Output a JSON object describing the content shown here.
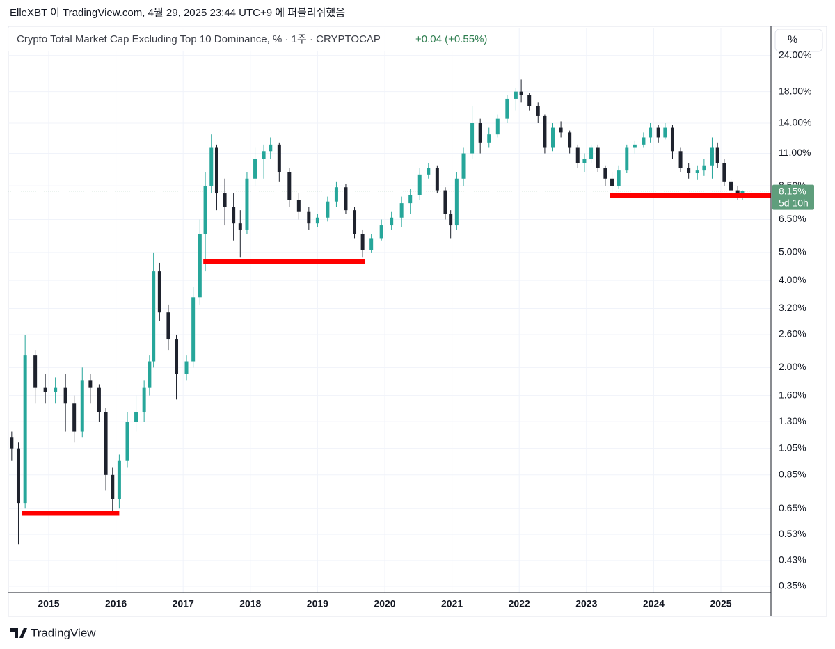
{
  "header": "ElleXBT 이 TradingView.com, 4월 29, 2025 23:44 UTC+9 에 퍼블리쉬했음",
  "footer": "TradingView",
  "chart_data": {
    "type": "candlestick",
    "title": "Crypto Total Market Cap Excluding Top 10 Dominance, % · 1주 · CRYPTOCAP",
    "change": "+0.04 (+0.55%)",
    "scale_button": "%",
    "log_scale": true,
    "grid": true,
    "up_color": "#26a69a",
    "down_color": "#1e222d",
    "x": [
      2014.45,
      2014.55,
      2014.65,
      2014.8,
      2014.95,
      2015.1,
      2015.25,
      2015.38,
      2015.5,
      2015.62,
      2015.75,
      2015.85,
      2015.95,
      2016.05,
      2016.17,
      2016.3,
      2016.42,
      2016.5,
      2016.56,
      2016.65,
      2016.78,
      2016.9,
      2017.05,
      2017.15,
      2017.25,
      2017.33,
      2017.42,
      2017.5,
      2017.62,
      2017.75,
      2017.85,
      2017.95,
      2018.07,
      2018.2,
      2018.3,
      2018.43,
      2018.58,
      2018.72,
      2018.87,
      2019.0,
      2019.15,
      2019.28,
      2019.42,
      2019.55,
      2019.67,
      2019.8,
      2019.95,
      2020.1,
      2020.25,
      2020.38,
      2020.52,
      2020.65,
      2020.78,
      2020.9,
      2020.98,
      2021.07,
      2021.17,
      2021.3,
      2021.42,
      2021.55,
      2021.68,
      2021.82,
      2021.95,
      2022.03,
      2022.15,
      2022.28,
      2022.38,
      2022.5,
      2022.62,
      2022.75,
      2022.87,
      2022.97,
      2023.07,
      2023.17,
      2023.28,
      2023.38,
      2023.48,
      2023.6,
      2023.72,
      2023.85,
      2023.95,
      2024.07,
      2024.17,
      2024.28,
      2024.4,
      2024.52,
      2024.65,
      2024.75,
      2024.87,
      2024.95,
      2025.05,
      2025.15,
      2025.25,
      2025.32
    ],
    "open": [
      1.15,
      1.05,
      0.68,
      2.2,
      1.7,
      1.65,
      1.7,
      1.5,
      1.2,
      1.8,
      1.7,
      1.4,
      0.85,
      0.7,
      0.95,
      1.3,
      1.4,
      1.7,
      2.1,
      4.3,
      3.1,
      2.5,
      1.9,
      2.1,
      3.5,
      5.8,
      8.5,
      11.5,
      8.0,
      7.2,
      6.3,
      6.0,
      9.0,
      10.5,
      11.2,
      11.8,
      9.5,
      7.6,
      6.9,
      6.3,
      6.6,
      7.5,
      8.4,
      7.0,
      5.8,
      5.1,
      5.6,
      6.2,
      6.6,
      7.4,
      7.9,
      9.3,
      9.8,
      8.2,
      6.8,
      6.2,
      9.0,
      11.0,
      14.0,
      12.0,
      12.8,
      14.5,
      17.0,
      18.0,
      17.5,
      16.0,
      14.8,
      11.5,
      13.5,
      13.0,
      11.5,
      10.2,
      10.5,
      11.5,
      9.8,
      9.0,
      8.5,
      9.6,
      11.5,
      11.8,
      12.5,
      13.5,
      12.5,
      13.5,
      11.2,
      9.8,
      9.4,
      9.6,
      10.0,
      11.5,
      10.2,
      8.8,
      8.2,
      7.9
    ],
    "high": [
      1.2,
      1.1,
      2.6,
      2.3,
      1.9,
      1.85,
      1.9,
      1.6,
      2.0,
      1.9,
      1.75,
      1.45,
      0.9,
      1.0,
      1.4,
      1.6,
      1.8,
      2.2,
      5.0,
      4.6,
      3.3,
      2.6,
      2.2,
      3.8,
      6.5,
      9.5,
      12.8,
      11.8,
      9.0,
      8.0,
      7.0,
      9.5,
      11.5,
      11.8,
      12.5,
      12.0,
      9.8,
      8.0,
      7.2,
      6.8,
      7.8,
      8.8,
      8.6,
      7.2,
      6.0,
      5.8,
      6.5,
      6.9,
      7.8,
      8.3,
      9.8,
      10.2,
      10.0,
      8.4,
      7.0,
      9.5,
      11.5,
      16.0,
      14.5,
      13.5,
      15.0,
      17.5,
      18.5,
      19.8,
      17.8,
      16.5,
      15.0,
      14.0,
      14.2,
      13.2,
      11.8,
      11.0,
      11.8,
      11.8,
      10.0,
      9.5,
      10.0,
      11.8,
      12.2,
      13.0,
      14.0,
      13.8,
      14.0,
      13.8,
      11.5,
      10.2,
      10.0,
      10.5,
      12.5,
      12.0,
      10.5,
      9.0,
      8.5,
      8.2
    ],
    "low": [
      0.95,
      0.49,
      0.65,
      1.5,
      1.5,
      1.5,
      1.2,
      1.1,
      1.15,
      1.5,
      1.3,
      0.75,
      0.63,
      0.65,
      0.9,
      1.2,
      1.3,
      1.6,
      2.0,
      2.9,
      2.3,
      1.55,
      1.8,
      2.0,
      3.3,
      4.3,
      8.0,
      7.0,
      6.2,
      5.5,
      4.8,
      5.8,
      8.5,
      9.0,
      10.5,
      8.8,
      7.2,
      6.5,
      6.0,
      6.1,
      6.4,
      7.2,
      6.8,
      5.6,
      4.8,
      5.0,
      5.5,
      6.0,
      6.1,
      6.8,
      7.6,
      9.0,
      8.0,
      6.5,
      5.6,
      6.0,
      8.5,
      10.5,
      11.0,
      11.5,
      12.5,
      14.0,
      15.5,
      16.5,
      15.5,
      14.0,
      11.0,
      11.2,
      12.5,
      11.0,
      9.8,
      9.5,
      10.2,
      9.5,
      8.5,
      7.8,
      8.3,
      9.4,
      11.0,
      11.5,
      12.0,
      12.0,
      12.3,
      10.5,
      9.5,
      9.0,
      8.9,
      9.2,
      9.0,
      9.8,
      8.5,
      7.9,
      7.6,
      7.6
    ],
    "close": [
      1.05,
      0.68,
      2.2,
      1.7,
      1.65,
      1.7,
      1.5,
      1.2,
      1.8,
      1.7,
      1.4,
      0.85,
      0.7,
      0.95,
      1.3,
      1.4,
      1.7,
      2.1,
      4.3,
      3.1,
      2.5,
      1.9,
      2.1,
      3.5,
      5.8,
      8.5,
      11.5,
      8.0,
      7.2,
      6.3,
      6.0,
      9.0,
      10.5,
      11.2,
      11.8,
      9.5,
      7.6,
      6.9,
      6.3,
      6.6,
      7.5,
      8.4,
      7.0,
      5.8,
      5.1,
      5.6,
      6.2,
      6.6,
      7.4,
      7.9,
      9.3,
      9.8,
      8.2,
      6.8,
      6.2,
      9.0,
      11.0,
      14.0,
      12.0,
      12.8,
      14.5,
      17.0,
      18.0,
      17.5,
      16.0,
      14.8,
      11.5,
      13.5,
      13.0,
      11.5,
      10.2,
      10.5,
      11.5,
      9.8,
      9.0,
      8.5,
      9.6,
      11.5,
      11.8,
      12.5,
      13.5,
      12.5,
      13.5,
      11.2,
      9.8,
      9.4,
      9.6,
      10.0,
      11.5,
      10.2,
      8.8,
      8.2,
      7.9,
      8.15
    ],
    "xlim": [
      2014.4,
      2025.745
    ],
    "xticks": [
      2015,
      2016,
      2017,
      2018,
      2019,
      2020,
      2021,
      2022,
      2023,
      2024,
      2025
    ],
    "ylim": [
      0.333,
      29.9
    ],
    "yticks": [
      {
        "value": 0.35,
        "label": "0.35%"
      },
      {
        "value": 0.43,
        "label": "0.43%"
      },
      {
        "value": 0.53,
        "label": "0.53%"
      },
      {
        "value": 0.65,
        "label": "0.65%"
      },
      {
        "value": 0.85,
        "label": "0.85%"
      },
      {
        "value": 1.05,
        "label": "1.05%"
      },
      {
        "value": 1.3,
        "label": "1.30%"
      },
      {
        "value": 1.6,
        "label": "1.60%"
      },
      {
        "value": 2,
        "label": "2.00%"
      },
      {
        "value": 2.6,
        "label": "2.60%"
      },
      {
        "value": 3.2,
        "label": "3.20%"
      },
      {
        "value": 4,
        "label": "4.00%"
      },
      {
        "value": 5,
        "label": "5.00%"
      },
      {
        "value": 6.5,
        "label": "6.50%"
      },
      {
        "value": 8.5,
        "label": "8.50%"
      },
      {
        "value": 11,
        "label": "11.00%"
      },
      {
        "value": 14,
        "label": "14.00%"
      },
      {
        "value": 18,
        "label": "18.00%"
      },
      {
        "value": 24,
        "label": "24.00%"
      }
    ],
    "last_price": {
      "value": 8.15,
      "label": "8.15%"
    },
    "countdown": "5d 10h",
    "price_color": "#5f9e7c",
    "level_color": "#ff0000",
    "levels": [
      {
        "value": 0.626,
        "start": 2014.6,
        "end": 2016.05
      },
      {
        "value": 4.65,
        "start": 2017.3,
        "end": 2019.7
      },
      {
        "value": 7.88,
        "start": 2023.35,
        "end": 2025.745
      }
    ]
  }
}
